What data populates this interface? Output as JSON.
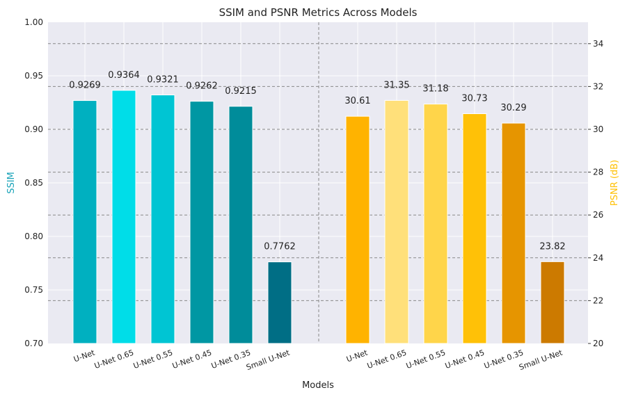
{
  "chart_data": {
    "type": "bar",
    "title": "SSIM and PSNR Metrics Across Models",
    "xlabel": "Models",
    "categories": [
      "U-Net",
      "U-Net 0.65",
      "U-Net 0.55",
      "U-Net 0.45",
      "U-Net 0.35",
      "Small U-Net"
    ],
    "grid": true,
    "series": [
      {
        "name": "SSIM",
        "axis": "left",
        "ylabel": "SSIM",
        "ylim": [
          0.7,
          1.0
        ],
        "yticks": [
          "0.70",
          "0.75",
          "0.80",
          "0.85",
          "0.90",
          "0.95",
          "1.00"
        ],
        "values": [
          0.9269,
          0.9364,
          0.9321,
          0.9262,
          0.9215,
          0.7762
        ],
        "labels": [
          "0.9269",
          "0.9364",
          "0.9321",
          "0.9262",
          "0.9215",
          "0.7762"
        ],
        "colors": [
          "#00b0c0",
          "#00dde8",
          "#00c5d3",
          "#0097a3",
          "#008c9a",
          "#006e85"
        ]
      },
      {
        "name": "PSNR (dB)",
        "axis": "right",
        "ylabel": "PSNR (dB)",
        "ylim": [
          20,
          35
        ],
        "yticks": [
          "20",
          "22",
          "24",
          "26",
          "28",
          "30",
          "32",
          "34"
        ],
        "values": [
          30.61,
          31.35,
          31.18,
          30.73,
          30.29,
          23.82
        ],
        "labels": [
          "30.61",
          "31.35",
          "31.18",
          "30.73",
          "30.29",
          "23.82"
        ],
        "colors": [
          "#ffb300",
          "#ffe07a",
          "#ffd54a",
          "#ffc107",
          "#e69500",
          "#cc7a00"
        ]
      }
    ],
    "colors": {
      "ssim_axis_label": "#17a2b8",
      "psnr_axis_label": "#ffc107",
      "plot_background": "#eaeaf2",
      "grid": "#ffffff",
      "dashed_grid": "#888888"
    }
  }
}
